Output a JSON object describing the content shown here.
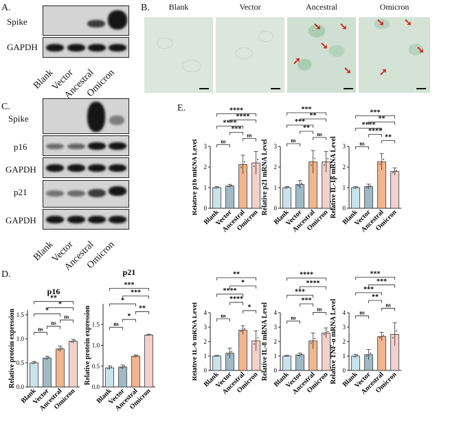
{
  "panels": {
    "a": {
      "label": "A.",
      "rows": [
        "Spike",
        "GAPDH"
      ],
      "lanes": [
        "Blank",
        "Vector",
        "Ancestral",
        "Omicron"
      ]
    },
    "b": {
      "label": "B.",
      "titles": [
        "Blank",
        "Vector",
        "Ancestral",
        "Omicron"
      ]
    },
    "c": {
      "label": "C.",
      "rows": [
        "Spike",
        "p16",
        "GAPDH",
        "p21",
        "GAPDH"
      ],
      "lanes": [
        "Blank",
        "Vector",
        "Ancestral",
        "Omicron"
      ]
    },
    "d": {
      "label": "D."
    },
    "e": {
      "label": "E."
    }
  },
  "colors": {
    "blank": "#c9e3ea",
    "vector": "#9fbac4",
    "ancestral": "#f2b58d",
    "omicron": "#f2d0cc"
  },
  "chart_data": [
    {
      "id": "d1",
      "type": "bar",
      "title": "p16",
      "ylabel": "Relative protein expression",
      "categories": [
        "Blank",
        "Vector",
        "Ancestral",
        "Omicron"
      ],
      "values": [
        0.5,
        0.6,
        0.79,
        0.95
      ],
      "errors": [
        0.03,
        0.04,
        0.06,
        0.04
      ],
      "ylim": [
        0,
        1.6
      ],
      "yticks": [
        "0.0",
        "0.5",
        "1.0",
        "1.5"
      ],
      "ytick_values": [
        0,
        0.5,
        1,
        1.5
      ],
      "sig": [
        {
          "a": 0,
          "b": 1,
          "t": "ns"
        },
        {
          "a": 1,
          "b": 2,
          "t": "ns"
        },
        {
          "a": 2,
          "b": 3,
          "t": "ns"
        },
        {
          "a": 0,
          "b": 2,
          "t": "*"
        },
        {
          "a": 1,
          "b": 3,
          "t": "*"
        },
        {
          "a": 0,
          "b": 3,
          "t": "**"
        }
      ]
    },
    {
      "id": "d2",
      "type": "bar",
      "title": "p21",
      "ylabel": "Relative protein expression",
      "categories": [
        "Blank",
        "Vector",
        "Ancestral",
        "Omicron"
      ],
      "values": [
        0.46,
        0.48,
        0.74,
        1.25
      ],
      "errors": [
        0.05,
        0.05,
        0.03,
        0.02
      ],
      "ylim": [
        0,
        2.0
      ],
      "yticks": [
        "0.0",
        "0.5",
        "1.0",
        "1.5"
      ],
      "ytick_values": [
        0,
        0.5,
        1,
        1.5
      ],
      "sig": [
        {
          "a": 0,
          "b": 1,
          "t": "ns"
        },
        {
          "a": 1,
          "b": 2,
          "t": "*"
        },
        {
          "a": 2,
          "b": 3,
          "t": "**"
        },
        {
          "a": 0,
          "b": 2,
          "t": "*"
        },
        {
          "a": 1,
          "b": 3,
          "t": "***"
        },
        {
          "a": 0,
          "b": 3,
          "t": "***"
        }
      ]
    },
    {
      "id": "e1",
      "type": "bar",
      "title": "",
      "ylabel": "Relative p16 mRNA Level",
      "categories": [
        "Blank",
        "Vector",
        "Ancestral",
        "Omicron"
      ],
      "values": [
        1.0,
        1.08,
        2.12,
        2.2
      ],
      "errors": [
        0.05,
        0.08,
        0.45,
        0.55
      ],
      "ylim": [
        0,
        3
      ],
      "yticks": [
        "0",
        "1",
        "2",
        "3"
      ],
      "ytick_values": [
        0,
        1,
        2,
        3
      ],
      "sig": [
        {
          "a": 0,
          "b": 1,
          "t": "ns"
        },
        {
          "a": 2,
          "b": 3,
          "t": "ns"
        },
        {
          "a": 1,
          "b": 2,
          "t": "***"
        },
        {
          "a": 0,
          "b": 2,
          "t": "****"
        },
        {
          "a": 1,
          "b": 3,
          "t": "****"
        },
        {
          "a": 0,
          "b": 3,
          "t": "****"
        }
      ]
    },
    {
      "id": "e2",
      "type": "bar",
      "title": "",
      "ylabel": "Relative p21 mRNA Level",
      "categories": [
        "Blank",
        "Vector",
        "Ancestral",
        "Omicron"
      ],
      "values": [
        1.0,
        1.15,
        2.25,
        2.25
      ],
      "errors": [
        0.05,
        0.2,
        0.55,
        0.5
      ],
      "ylim": [
        0,
        3
      ],
      "yticks": [
        "0",
        "1",
        "2",
        "3"
      ],
      "ytick_values": [
        0,
        1,
        2,
        3
      ],
      "sig": [
        {
          "a": 0,
          "b": 1,
          "t": "ns"
        },
        {
          "a": 2,
          "b": 3,
          "t": "ns"
        },
        {
          "a": 1,
          "b": 2,
          "t": "**"
        },
        {
          "a": 0,
          "b": 2,
          "t": "***"
        },
        {
          "a": 1,
          "b": 3,
          "t": "**"
        },
        {
          "a": 0,
          "b": 3,
          "t": "***"
        }
      ]
    },
    {
      "id": "e3",
      "type": "bar",
      "title": "",
      "ylabel": "Relative IL-1β mRNA Level",
      "categories": [
        "Blank",
        "Vector",
        "Ancestral",
        "Omicron"
      ],
      "values": [
        1.0,
        1.05,
        2.25,
        1.78
      ],
      "errors": [
        0.05,
        0.12,
        0.4,
        0.18
      ],
      "ylim": [
        0,
        3
      ],
      "yticks": [
        "0",
        "1",
        "2",
        "3"
      ],
      "ytick_values": [
        0,
        1,
        2,
        3
      ],
      "sig": [
        {
          "a": 0,
          "b": 1,
          "t": "ns"
        },
        {
          "a": 2,
          "b": 3,
          "t": "**"
        },
        {
          "a": 1,
          "b": 2,
          "t": "****"
        },
        {
          "a": 0,
          "b": 2,
          "t": "****"
        },
        {
          "a": 1,
          "b": 3,
          "t": "**"
        },
        {
          "a": 0,
          "b": 3,
          "t": "***"
        }
      ]
    },
    {
      "id": "e4",
      "type": "bar",
      "title": "",
      "ylabel": "Relative IL-6 mRNA Level",
      "categories": [
        "Blank",
        "Vector",
        "Ancestral",
        "Omicron"
      ],
      "values": [
        1.0,
        1.2,
        2.8,
        2.05
      ],
      "errors": [
        0.05,
        0.35,
        0.3,
        0.7
      ],
      "ylim": [
        0,
        4
      ],
      "yticks": [
        "0",
        "1",
        "2",
        "3",
        "4"
      ],
      "ytick_values": [
        0,
        1,
        2,
        3,
        4
      ],
      "sig": [
        {
          "a": 0,
          "b": 1,
          "t": "ns"
        },
        {
          "a": 2,
          "b": 3,
          "t": "*"
        },
        {
          "a": 1,
          "b": 2,
          "t": "****"
        },
        {
          "a": 0,
          "b": 2,
          "t": "****"
        },
        {
          "a": 1,
          "b": 3,
          "t": "*"
        },
        {
          "a": 0,
          "b": 3,
          "t": "**"
        }
      ]
    },
    {
      "id": "e5",
      "type": "bar",
      "title": "",
      "ylabel": "Relative IL-8 mRNA Level",
      "categories": [
        "Blank",
        "Vector",
        "Ancestral",
        "Omicron"
      ],
      "values": [
        1.0,
        1.08,
        2.05,
        2.6
      ],
      "errors": [
        0.05,
        0.12,
        0.55,
        0.35
      ],
      "ylim": [
        0,
        4
      ],
      "yticks": [
        "0",
        "1",
        "2",
        "3",
        "4"
      ],
      "ytick_values": [
        0,
        1,
        2,
        3,
        4
      ],
      "sig": [
        {
          "a": 0,
          "b": 1,
          "t": "ns"
        },
        {
          "a": 2,
          "b": 3,
          "t": "ns"
        },
        {
          "a": 1,
          "b": 2,
          "t": "***"
        },
        {
          "a": 0,
          "b": 2,
          "t": "***"
        },
        {
          "a": 1,
          "b": 3,
          "t": "****"
        },
        {
          "a": 0,
          "b": 3,
          "t": "****"
        }
      ]
    },
    {
      "id": "e6",
      "type": "bar",
      "title": "",
      "ylabel": "Relative TNF-α mRNA Level",
      "categories": [
        "Blank",
        "Vector",
        "Ancestral",
        "Omicron"
      ],
      "values": [
        1.0,
        1.1,
        2.35,
        2.5
      ],
      "errors": [
        0.12,
        0.35,
        0.3,
        0.8
      ],
      "ylim": [
        0,
        4
      ],
      "yticks": [
        "0",
        "1",
        "2",
        "3",
        "4"
      ],
      "ytick_values": [
        0,
        1,
        2,
        3,
        4
      ],
      "sig": [
        {
          "a": 0,
          "b": 1,
          "t": "ns"
        },
        {
          "a": 2,
          "b": 3,
          "t": "ns"
        },
        {
          "a": 1,
          "b": 2,
          "t": "**"
        },
        {
          "a": 0,
          "b": 2,
          "t": "***"
        },
        {
          "a": 1,
          "b": 3,
          "t": "***"
        },
        {
          "a": 0,
          "b": 3,
          "t": "***"
        }
      ]
    }
  ]
}
